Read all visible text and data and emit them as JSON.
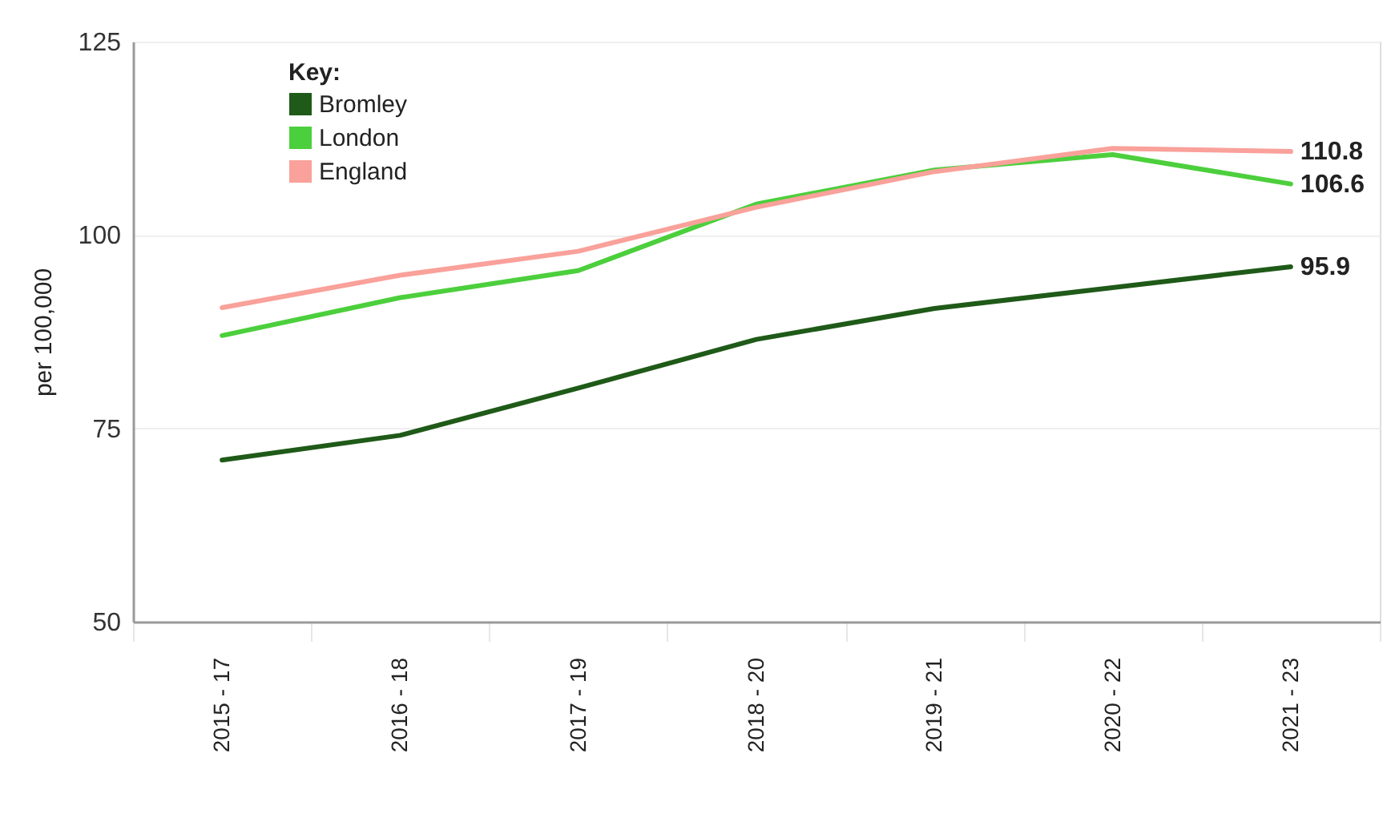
{
  "chart_data": {
    "type": "line",
    "ylabel": "per 100,000",
    "legend_title": "Key:",
    "categories": [
      "2015 - 17",
      "2016 - 18",
      "2017 - 19",
      "2018 - 20",
      "2019 - 21",
      "2020 - 22",
      "2021 - 23"
    ],
    "series": [
      {
        "name": "Bromley",
        "color": "#1f5a18",
        "values": [
          70.9,
          74.1,
          80.2,
          86.5,
          90.5,
          93.2,
          95.9
        ],
        "value_labels": [
          null,
          null,
          null,
          null,
          null,
          null,
          "95.9"
        ]
      },
      {
        "name": "London",
        "color": "#4ccf3c",
        "values": [
          87.0,
          91.9,
          95.4,
          104.0,
          108.4,
          110.4,
          106.6
        ],
        "value_labels": [
          null,
          null,
          null,
          null,
          null,
          null,
          "106.6"
        ]
      },
      {
        "name": "England",
        "color": "#f9a19a",
        "values": [
          90.6,
          94.8,
          97.9,
          103.6,
          108.2,
          111.2,
          110.8
        ],
        "value_labels": [
          null,
          null,
          null,
          null,
          null,
          null,
          "110.8"
        ]
      }
    ],
    "ylim": [
      50,
      125
    ],
    "yticks": [
      50,
      75,
      100,
      125
    ],
    "grid": "y",
    "legend": "top left"
  }
}
